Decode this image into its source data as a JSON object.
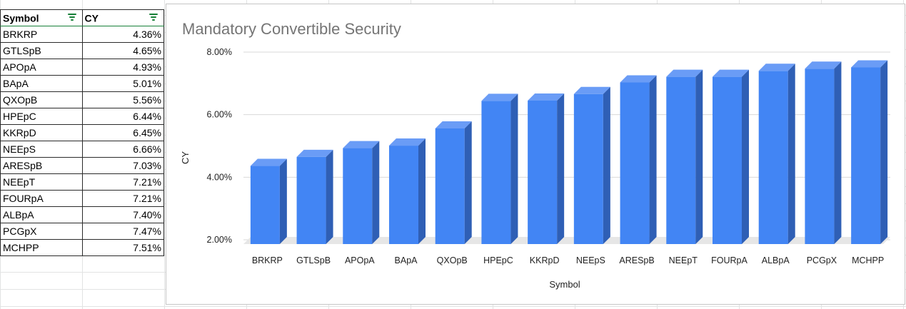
{
  "sheet": {
    "headers": {
      "symbol": "Symbol",
      "cy": "CY"
    },
    "rows": [
      {
        "symbol": "BRKRP",
        "cy": "4.36%"
      },
      {
        "symbol": "GTLSpB",
        "cy": "4.65%"
      },
      {
        "symbol": "APOpA",
        "cy": "4.93%"
      },
      {
        "symbol": "BApA",
        "cy": "5.01%"
      },
      {
        "symbol": "QXOpB",
        "cy": "5.56%"
      },
      {
        "symbol": "HPEpC",
        "cy": "6.44%"
      },
      {
        "symbol": "KKRpD",
        "cy": "6.45%"
      },
      {
        "symbol": "NEEpS",
        "cy": "6.66%"
      },
      {
        "symbol": "ARESpB",
        "cy": "7.03%"
      },
      {
        "symbol": "NEEpT",
        "cy": "7.21%"
      },
      {
        "symbol": "FOURpA",
        "cy": "7.21%"
      },
      {
        "symbol": "ALBpA",
        "cy": "7.40%"
      },
      {
        "symbol": "PCGpX",
        "cy": "7.47%"
      },
      {
        "symbol": "MCHPP",
        "cy": "7.51%"
      }
    ]
  },
  "colors": {
    "bar_front": "#4285f4",
    "bar_side": "#2f5fb5",
    "bar_top": "#6a9cf6",
    "filter": "#188038"
  },
  "chart_data": {
    "type": "bar",
    "title": "Mandatory Convertible Security",
    "xlabel": "Symbol",
    "ylabel": "CY",
    "categories": [
      "BRKRP",
      "GTLSpB",
      "APOpA",
      "BApA",
      "QXOpB",
      "HPEpC",
      "KKRpD",
      "NEEpS",
      "ARESpB",
      "NEEpT",
      "FOURpA",
      "ALBpA",
      "PCGpX",
      "MCHPP"
    ],
    "values": [
      4.36,
      4.65,
      4.93,
      5.01,
      5.56,
      6.44,
      6.45,
      6.66,
      7.03,
      7.21,
      7.21,
      7.4,
      7.47,
      7.51
    ],
    "yticks": [
      "2.00%",
      "4.00%",
      "6.00%",
      "8.00%"
    ],
    "ylim": [
      2,
      8
    ],
    "grid": true,
    "style": "3d"
  }
}
